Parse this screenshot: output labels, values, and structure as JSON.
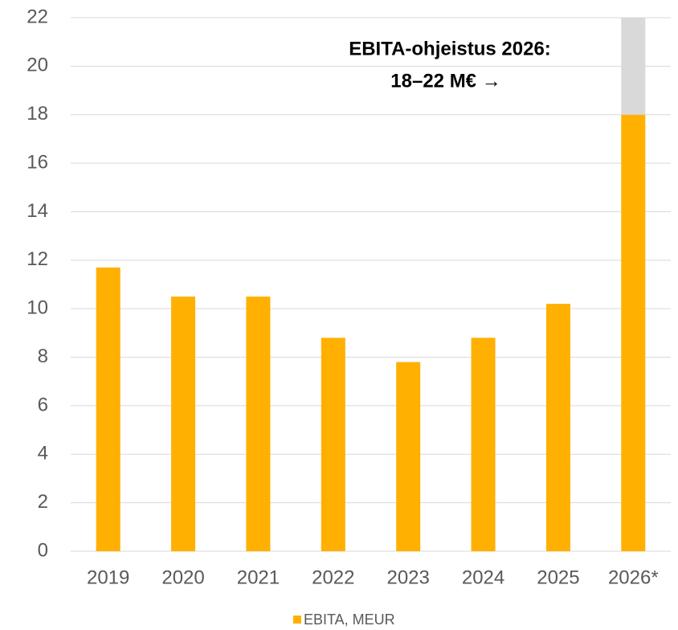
{
  "chart_data": {
    "type": "bar",
    "stacked": true,
    "categories": [
      "2019",
      "2020",
      "2021",
      "2022",
      "2023",
      "2024",
      "2025",
      "2026*"
    ],
    "series": [
      {
        "name": "EBITA, MEUR",
        "color": "#ffb000",
        "values": [
          11.7,
          10.5,
          10.5,
          8.8,
          7.8,
          8.8,
          10.2,
          18
        ]
      },
      {
        "color": "#d9d9d9",
        "values": [
          null,
          null,
          null,
          null,
          null,
          null,
          null,
          4
        ]
      }
    ],
    "annotation": [
      "EBITA-ohjeistus 2026:",
      "18–22 M€ →"
    ],
    "ylim": [
      0,
      22
    ],
    "yticks": [
      0,
      2,
      4,
      6,
      8,
      10,
      12,
      14,
      16,
      18,
      20,
      22
    ],
    "grid": true,
    "legend": "bottom"
  }
}
